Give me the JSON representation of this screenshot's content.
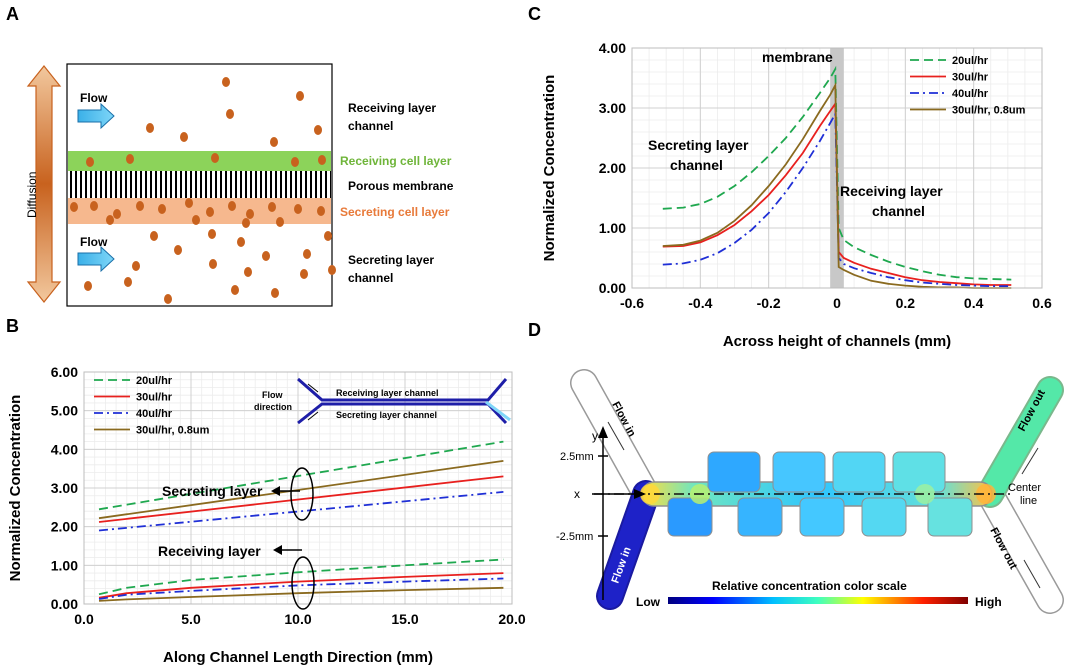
{
  "panel_labels": [
    "A",
    "B",
    "C",
    "D"
  ],
  "colors": {
    "s20": "#1fa84f",
    "s30": "#e8201e",
    "s40": "#1f2fd6",
    "s08": "#8a6a1f",
    "orange": "#c8621e",
    "green": "#8cd35a",
    "salmon": "#f6b88e"
  },
  "panelA": {
    "diffusion": "Diffusion",
    "flow_top": "Flow",
    "flow_bottom": "Flow",
    "receiving_channel_1": "Receiving layer",
    "receiving_channel_2": "channel",
    "receiving_cell": "Receiving cell layer",
    "porous": "Porous membrane",
    "secreting_cell": "Secreting cell layer",
    "secreting_channel_1": "Secreting layer",
    "secreting_channel_2": "channel"
  },
  "panelD": {
    "flow_in_top": "Flow in",
    "flow_in_bottom": "Flow in",
    "flow_out_top": "Flow out",
    "flow_out_bottom": "Flow out",
    "y": "y",
    "x": "x",
    "y_pos": "2.5mm",
    "y_neg": "-2.5mm",
    "center_1": "Center",
    "center_2": "line",
    "scale_title": "Relative concentration color scale",
    "low": "Low",
    "high": "High"
  },
  "chart_data": [
    {
      "id": "B",
      "type": "line",
      "xlabel": "Along Channel Length Direction (mm)",
      "ylabel": "Normalized Concentration",
      "xlim": [
        0,
        20
      ],
      "ylim": [
        0,
        6
      ],
      "xticks": [
        "0.0",
        "5.0",
        "10.0",
        "15.0",
        "20.0"
      ],
      "yticks": [
        "0.00",
        "1.00",
        "2.00",
        "3.00",
        "4.00",
        "5.00",
        "6.00"
      ],
      "legend": [
        "20ul/hr",
        "30ul/hr",
        "40ul/hr",
        "30ul/hr, 0.8um"
      ],
      "annotations": [
        "Secreting layer",
        "Receiving layer"
      ],
      "inset": {
        "flow1": "Flow",
        "flow2": "direction",
        "receiving": "Receiving layer channel",
        "secreting": "Secreting layer channel"
      },
      "series": [
        {
          "name": "20ul/hr",
          "group": "secreting",
          "x": [
            0.7,
            19.6
          ],
          "y": [
            2.45,
            4.2
          ]
        },
        {
          "name": "30ul/hr",
          "group": "secreting",
          "x": [
            0.7,
            19.6
          ],
          "y": [
            2.12,
            3.3
          ]
        },
        {
          "name": "40ul/hr",
          "group": "secreting",
          "x": [
            0.7,
            19.6
          ],
          "y": [
            1.9,
            2.9
          ]
        },
        {
          "name": "30ul/hr, 0.8um",
          "group": "secreting",
          "x": [
            0.7,
            19.6
          ],
          "y": [
            2.22,
            3.7
          ]
        },
        {
          "name": "20ul/hr",
          "group": "receiving",
          "x": [
            0.7,
            2,
            5,
            10,
            15,
            19.6
          ],
          "y": [
            0.25,
            0.42,
            0.62,
            0.82,
            1.0,
            1.15
          ]
        },
        {
          "name": "30ul/hr",
          "group": "receiving",
          "x": [
            0.7,
            2,
            5,
            10,
            15,
            19.6
          ],
          "y": [
            0.16,
            0.28,
            0.42,
            0.58,
            0.7,
            0.8
          ]
        },
        {
          "name": "40ul/hr",
          "group": "receiving",
          "x": [
            0.7,
            2,
            5,
            10,
            15,
            19.6
          ],
          "y": [
            0.13,
            0.24,
            0.34,
            0.48,
            0.58,
            0.66
          ]
        },
        {
          "name": "30ul/hr, 0.8um",
          "group": "receiving",
          "x": [
            0.7,
            2,
            5,
            10,
            15,
            19.6
          ],
          "y": [
            0.08,
            0.12,
            0.18,
            0.28,
            0.36,
            0.42
          ]
        }
      ]
    },
    {
      "id": "C",
      "type": "line",
      "xlabel": "Across height of channels (mm)",
      "ylabel": "Normalized Concentration",
      "xlim": [
        -0.6,
        0.6
      ],
      "ylim": [
        0,
        4
      ],
      "xticks": [
        "-0.6",
        "-0.4",
        "-0.2",
        "0",
        "0.2",
        "0.4",
        "0.6"
      ],
      "yticks": [
        "0.00",
        "1.00",
        "2.00",
        "3.00",
        "4.00"
      ],
      "legend": [
        "20ul/hr",
        "30ul/hr",
        "40ul/hr",
        "30ul/hr, 0.8um"
      ],
      "annotations": {
        "membrane": "membrane",
        "secreting_1": "Secreting layer",
        "secreting_2": "channel",
        "receiving_1": "Receiving layer",
        "receiving_2": "channel"
      },
      "series": [
        {
          "name": "20ul/hr",
          "x": [
            -0.51,
            -0.45,
            -0.4,
            -0.35,
            -0.3,
            -0.25,
            -0.2,
            -0.15,
            -0.1,
            -0.05,
            -0.02,
            -0.005,
            0.005,
            0.02,
            0.05,
            0.1,
            0.15,
            0.2,
            0.25,
            0.3,
            0.35,
            0.4,
            0.45,
            0.51
          ],
          "y": [
            1.32,
            1.34,
            1.4,
            1.52,
            1.7,
            1.93,
            2.2,
            2.5,
            2.85,
            3.25,
            3.5,
            3.65,
            1.0,
            0.8,
            0.68,
            0.55,
            0.44,
            0.35,
            0.28,
            0.22,
            0.18,
            0.16,
            0.15,
            0.14
          ]
        },
        {
          "name": "30ul/hr",
          "x": [
            -0.51,
            -0.45,
            -0.4,
            -0.35,
            -0.3,
            -0.25,
            -0.2,
            -0.15,
            -0.1,
            -0.05,
            -0.02,
            -0.005,
            0.005,
            0.02,
            0.05,
            0.1,
            0.15,
            0.2,
            0.25,
            0.3,
            0.35,
            0.4,
            0.45,
            0.51
          ],
          "y": [
            0.69,
            0.7,
            0.76,
            0.88,
            1.05,
            1.28,
            1.55,
            1.88,
            2.25,
            2.7,
            2.95,
            3.07,
            0.6,
            0.5,
            0.42,
            0.32,
            0.25,
            0.18,
            0.13,
            0.1,
            0.08,
            0.06,
            0.05,
            0.05
          ]
        },
        {
          "name": "40ul/hr",
          "x": [
            -0.51,
            -0.45,
            -0.4,
            -0.35,
            -0.3,
            -0.25,
            -0.2,
            -0.15,
            -0.1,
            -0.05,
            -0.02,
            -0.005,
            0.005,
            0.02,
            0.05,
            0.1,
            0.15,
            0.2,
            0.25,
            0.3,
            0.35,
            0.4,
            0.45,
            0.51
          ],
          "y": [
            0.39,
            0.41,
            0.47,
            0.58,
            0.75,
            0.97,
            1.25,
            1.6,
            2.0,
            2.45,
            2.75,
            2.9,
            0.5,
            0.4,
            0.33,
            0.25,
            0.18,
            0.13,
            0.09,
            0.07,
            0.05,
            0.04,
            0.03,
            0.03
          ]
        },
        {
          "name": "30ul/hr, 0.8um",
          "x": [
            -0.51,
            -0.45,
            -0.4,
            -0.35,
            -0.3,
            -0.25,
            -0.2,
            -0.15,
            -0.1,
            -0.05,
            -0.02,
            -0.005,
            0.005,
            0.02,
            0.05,
            0.1,
            0.15,
            0.2,
            0.25,
            0.3,
            0.35,
            0.4,
            0.45,
            0.51
          ],
          "y": [
            0.7,
            0.72,
            0.79,
            0.92,
            1.12,
            1.38,
            1.7,
            2.06,
            2.48,
            2.95,
            3.22,
            3.38,
            0.35,
            0.3,
            0.22,
            0.12,
            0.07,
            0.04,
            0.02,
            0.01,
            0.01,
            0.0,
            0.0,
            0.0
          ]
        }
      ]
    }
  ]
}
